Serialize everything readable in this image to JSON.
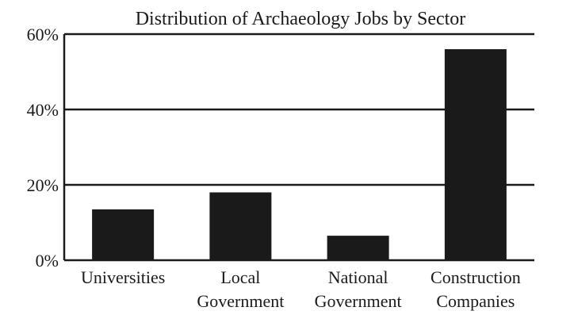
{
  "chart_data": {
    "type": "bar",
    "title": "Distribution of Archaeology Jobs by Sector",
    "xlabel": "",
    "ylabel": "",
    "categories": [
      [
        "Universities"
      ],
      [
        "Local",
        "Government"
      ],
      [
        "National",
        "Government"
      ],
      [
        "Construction",
        "Companies"
      ]
    ],
    "values": [
      13.5,
      18,
      6.5,
      56
    ],
    "ylim": [
      0,
      60
    ],
    "yticks": [
      0,
      20,
      40,
      60
    ],
    "ytick_labels": [
      "0%",
      "20%",
      "40%",
      "60%"
    ],
    "grid": "horizontal",
    "legend": "none",
    "bar_color": "#1a1a1a"
  }
}
